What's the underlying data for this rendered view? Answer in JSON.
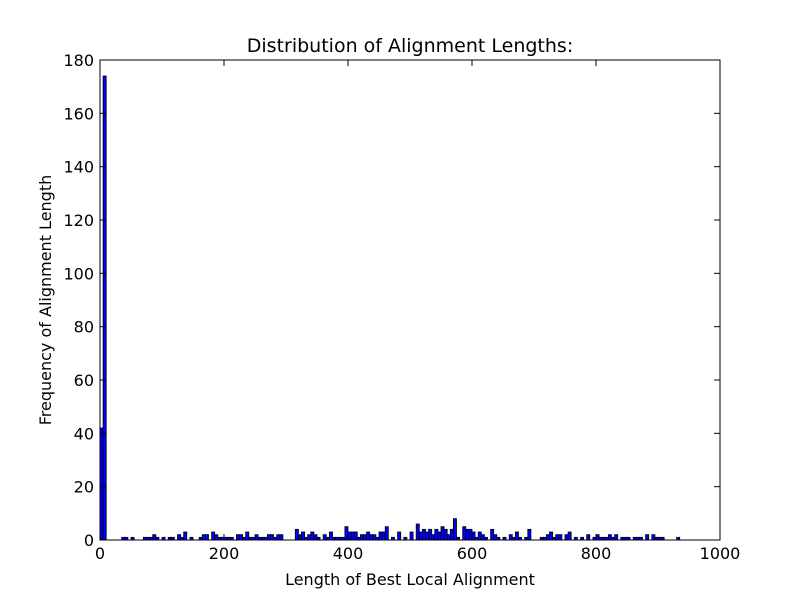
{
  "chart_data": {
    "type": "bar",
    "title": "Distribution of Alignment Lengths:",
    "xlabel": "Length of Best Local Alignment",
    "ylabel": "Frequency of Alignment Length",
    "xlim": [
      0,
      1000
    ],
    "ylim": [
      0,
      180
    ],
    "xticks": [
      "0",
      "200",
      "400",
      "600",
      "800",
      "1000"
    ],
    "yticks": [
      "0",
      "20",
      "40",
      "60",
      "80",
      "100",
      "120",
      "140",
      "160",
      "180"
    ],
    "bar_color": "#0000ff",
    "edge_color": "#000000",
    "grid": false,
    "bin_width": 5,
    "bins": [
      [
        0,
        42
      ],
      [
        5,
        174
      ],
      [
        35,
        1
      ],
      [
        40,
        1
      ],
      [
        50,
        1
      ],
      [
        70,
        1
      ],
      [
        75,
        1
      ],
      [
        80,
        1
      ],
      [
        85,
        2
      ],
      [
        90,
        1
      ],
      [
        100,
        1
      ],
      [
        110,
        1
      ],
      [
        115,
        1
      ],
      [
        125,
        2
      ],
      [
        130,
        1
      ],
      [
        135,
        3
      ],
      [
        145,
        1
      ],
      [
        160,
        1
      ],
      [
        165,
        2
      ],
      [
        170,
        2
      ],
      [
        180,
        3
      ],
      [
        185,
        2
      ],
      [
        190,
        1
      ],
      [
        195,
        1
      ],
      [
        200,
        1
      ],
      [
        205,
        1
      ],
      [
        210,
        1
      ],
      [
        220,
        2
      ],
      [
        225,
        2
      ],
      [
        230,
        1
      ],
      [
        235,
        3
      ],
      [
        240,
        1
      ],
      [
        245,
        1
      ],
      [
        250,
        2
      ],
      [
        255,
        1
      ],
      [
        260,
        1
      ],
      [
        265,
        1
      ],
      [
        270,
        2
      ],
      [
        275,
        2
      ],
      [
        280,
        1
      ],
      [
        285,
        2
      ],
      [
        290,
        2
      ],
      [
        315,
        4
      ],
      [
        320,
        2
      ],
      [
        325,
        3
      ],
      [
        330,
        1
      ],
      [
        335,
        2
      ],
      [
        340,
        3
      ],
      [
        345,
        2
      ],
      [
        350,
        1
      ],
      [
        360,
        2
      ],
      [
        365,
        1
      ],
      [
        370,
        3
      ],
      [
        375,
        1
      ],
      [
        380,
        1
      ],
      [
        385,
        1
      ],
      [
        390,
        1
      ],
      [
        395,
        5
      ],
      [
        400,
        3
      ],
      [
        405,
        3
      ],
      [
        410,
        3
      ],
      [
        415,
        1
      ],
      [
        420,
        2
      ],
      [
        425,
        2
      ],
      [
        430,
        3
      ],
      [
        435,
        2
      ],
      [
        440,
        2
      ],
      [
        445,
        1
      ],
      [
        450,
        3
      ],
      [
        455,
        3
      ],
      [
        460,
        5
      ],
      [
        470,
        1
      ],
      [
        480,
        3
      ],
      [
        490,
        1
      ],
      [
        500,
        3
      ],
      [
        510,
        6
      ],
      [
        515,
        3
      ],
      [
        520,
        4
      ],
      [
        525,
        3
      ],
      [
        530,
        4
      ],
      [
        535,
        2
      ],
      [
        540,
        4
      ],
      [
        545,
        3
      ],
      [
        550,
        5
      ],
      [
        555,
        4
      ],
      [
        560,
        2
      ],
      [
        565,
        4
      ],
      [
        570,
        8
      ],
      [
        575,
        1
      ],
      [
        585,
        5
      ],
      [
        590,
        4
      ],
      [
        595,
        4
      ],
      [
        600,
        3
      ],
      [
        605,
        1
      ],
      [
        610,
        3
      ],
      [
        615,
        2
      ],
      [
        620,
        1
      ],
      [
        630,
        4
      ],
      [
        635,
        2
      ],
      [
        640,
        1
      ],
      [
        650,
        1
      ],
      [
        660,
        2
      ],
      [
        665,
        1
      ],
      [
        670,
        3
      ],
      [
        675,
        1
      ],
      [
        685,
        1
      ],
      [
        690,
        4
      ],
      [
        710,
        1
      ],
      [
        715,
        1
      ],
      [
        720,
        2
      ],
      [
        725,
        3
      ],
      [
        730,
        1
      ],
      [
        735,
        2
      ],
      [
        740,
        2
      ],
      [
        750,
        2
      ],
      [
        755,
        3
      ],
      [
        765,
        1
      ],
      [
        775,
        1
      ],
      [
        785,
        2
      ],
      [
        795,
        1
      ],
      [
        800,
        2
      ],
      [
        805,
        1
      ],
      [
        810,
        1
      ],
      [
        815,
        1
      ],
      [
        820,
        2
      ],
      [
        825,
        1
      ],
      [
        830,
        2
      ],
      [
        840,
        1
      ],
      [
        845,
        1
      ],
      [
        850,
        1
      ],
      [
        860,
        1
      ],
      [
        865,
        1
      ],
      [
        870,
        1
      ],
      [
        880,
        2
      ],
      [
        890,
        2
      ],
      [
        895,
        1
      ],
      [
        900,
        1
      ],
      [
        905,
        1
      ],
      [
        930,
        1
      ]
    ]
  }
}
